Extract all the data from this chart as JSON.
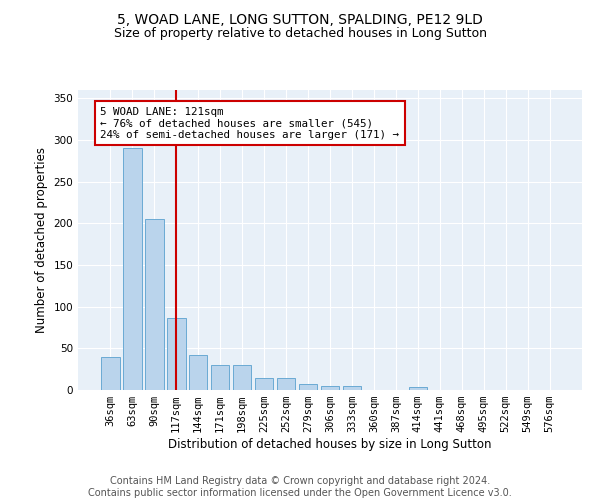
{
  "title": "5, WOAD LANE, LONG SUTTON, SPALDING, PE12 9LD",
  "subtitle": "Size of property relative to detached houses in Long Sutton",
  "xlabel": "Distribution of detached houses by size in Long Sutton",
  "ylabel": "Number of detached properties",
  "categories": [
    "36sqm",
    "63sqm",
    "90sqm",
    "117sqm",
    "144sqm",
    "171sqm",
    "198sqm",
    "225sqm",
    "252sqm",
    "279sqm",
    "306sqm",
    "333sqm",
    "360sqm",
    "387sqm",
    "414sqm",
    "441sqm",
    "468sqm",
    "495sqm",
    "522sqm",
    "549sqm",
    "576sqm"
  ],
  "values": [
    40,
    290,
    205,
    87,
    42,
    30,
    30,
    15,
    15,
    7,
    5,
    5,
    0,
    0,
    4,
    0,
    0,
    0,
    0,
    0,
    0
  ],
  "bar_color": "#bad4ec",
  "bar_edge_color": "#6aaad4",
  "vline_color": "#cc0000",
  "vline_x": 3.0,
  "annotation_text": "5 WOAD LANE: 121sqm\n← 76% of detached houses are smaller (545)\n24% of semi-detached houses are larger (171) →",
  "annotation_box_facecolor": "#ffffff",
  "annotation_box_edgecolor": "#cc0000",
  "ylim": [
    0,
    360
  ],
  "yticks": [
    0,
    50,
    100,
    150,
    200,
    250,
    300,
    350
  ],
  "plot_bg_color": "#e8f0f8",
  "grid_color": "#ffffff",
  "title_fontsize": 10,
  "subtitle_fontsize": 9,
  "axis_label_fontsize": 8.5,
  "tick_fontsize": 7.5,
  "footer_fontsize": 7,
  "footer_line1": "Contains HM Land Registry data © Crown copyright and database right 2024.",
  "footer_line2": "Contains public sector information licensed under the Open Government Licence v3.0."
}
